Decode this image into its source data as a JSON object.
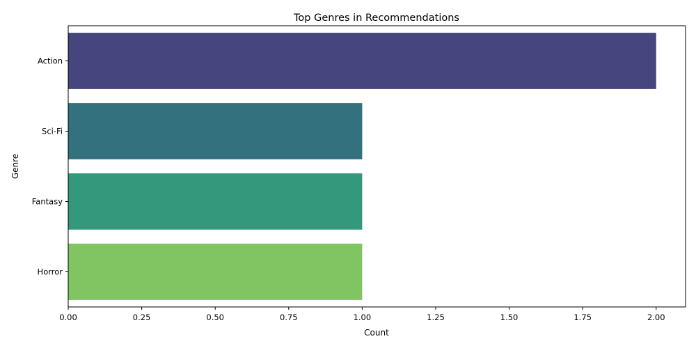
{
  "chart_data": {
    "type": "bar",
    "orientation": "horizontal",
    "title": "Top Genres in Recommendations",
    "xlabel": "Count",
    "ylabel": "Genre",
    "categories": [
      "Action",
      "Sci-Fi",
      "Fantasy",
      "Horror"
    ],
    "values": [
      2,
      1,
      1,
      1
    ],
    "colors": [
      "#46457d",
      "#33717f",
      "#34997c",
      "#81c462"
    ],
    "xlim": [
      0,
      2.1
    ],
    "xticks": [
      0.0,
      0.25,
      0.5,
      0.75,
      1.0,
      1.25,
      1.5,
      1.75,
      2.0
    ],
    "xtick_labels": [
      "0.00",
      "0.25",
      "0.50",
      "0.75",
      "1.00",
      "1.25",
      "1.50",
      "1.75",
      "2.00"
    ],
    "grid": false,
    "legend": "none"
  }
}
